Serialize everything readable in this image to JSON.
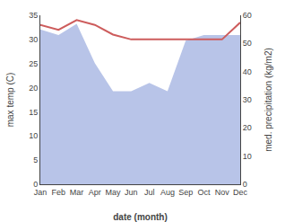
{
  "chart_data": {
    "type": "line",
    "categories": [
      "Jan",
      "Feb",
      "Mar",
      "Apr",
      "May",
      "Jun",
      "Jul",
      "Aug",
      "Sep",
      "Oct",
      "Nov",
      "Dec"
    ],
    "xlabel": "date (month)",
    "ylabel": "max temp (C)",
    "y2label": "med. precipitation (kg/m2)",
    "ylim": [
      0,
      35
    ],
    "yticks": [
      0,
      5,
      10,
      15,
      20,
      25,
      30,
      35
    ],
    "y2lim": [
      0,
      60
    ],
    "y2ticks": [
      0,
      10,
      20,
      30,
      40,
      50,
      60
    ],
    "grid": false,
    "series": [
      {
        "type": "area",
        "color": "#b8c4e8",
        "axis": "y2",
        "values": [
          55,
          53,
          57,
          43,
          33,
          33,
          36,
          33,
          51,
          53,
          53,
          53
        ]
      },
      {
        "type": "line",
        "color": "#cd5c5c",
        "values": [
          33,
          32,
          34,
          33,
          31,
          30,
          30,
          30,
          30,
          30,
          30,
          33.5
        ]
      }
    ]
  }
}
